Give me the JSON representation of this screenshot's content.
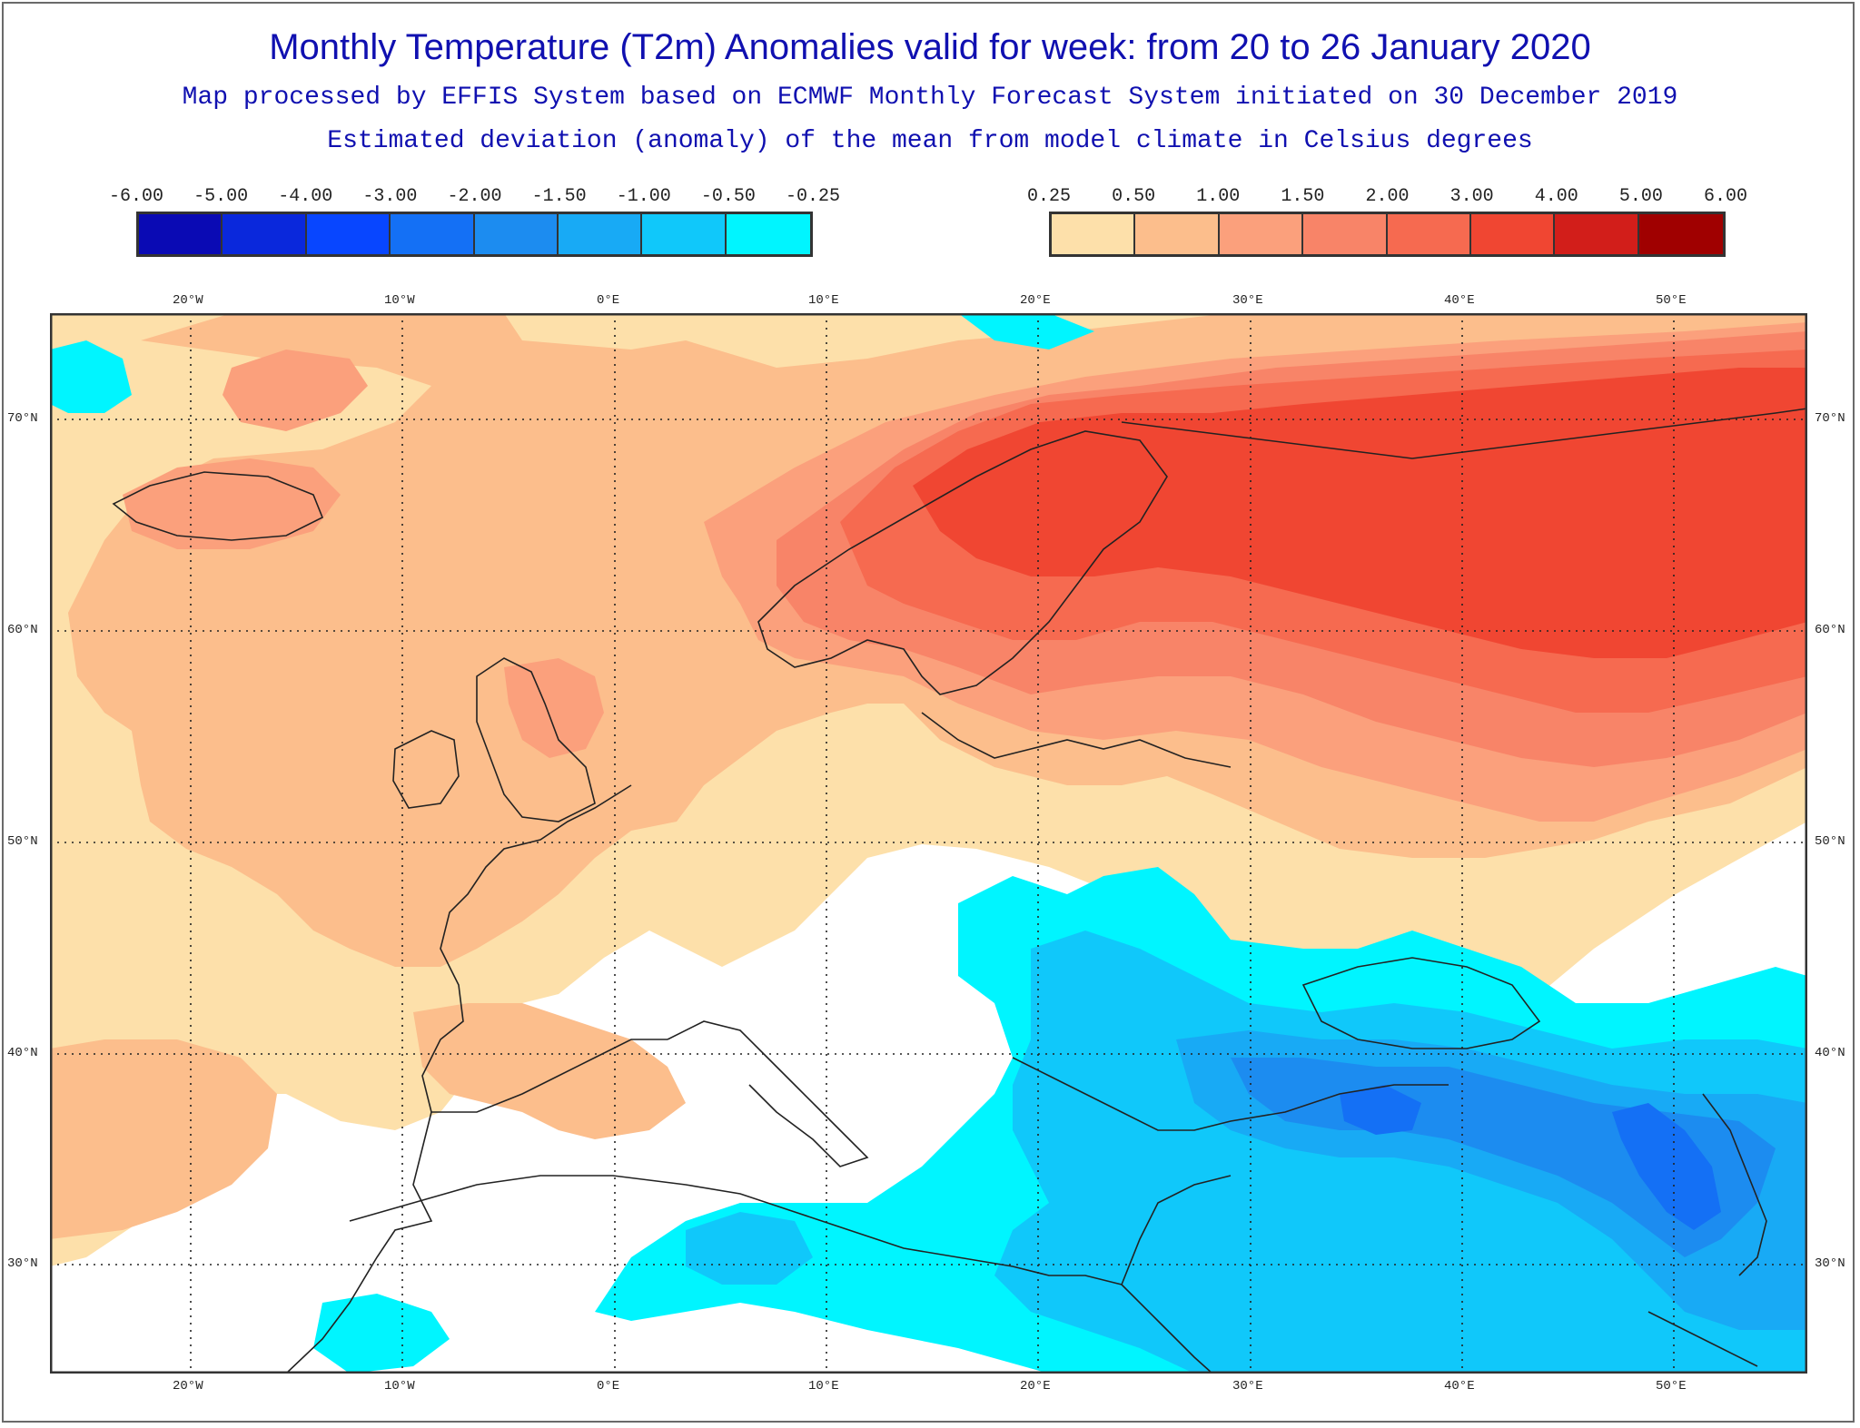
{
  "header": {
    "title": "Monthly Temperature (T2m) Anomalies valid for week: from 20 to 26 January 2020",
    "subtitle1": "Map processed by EFFIS System based on ECMWF Monthly Forecast System initiated on 30 December 2019",
    "subtitle2": "Estimated deviation (anomaly) of the mean from model climate in Celsius degrees"
  },
  "legend_negative": {
    "ticks": [
      "-6.00",
      "-5.00",
      "-4.00",
      "-3.00",
      "-2.00",
      "-1.50",
      "-1.00",
      "-0.50",
      "-0.25"
    ],
    "colors": [
      "#0a0ab4",
      "#0a28dc",
      "#0846ff",
      "#1470f5",
      "#1c8cf0",
      "#18aaf5",
      "#10c8fa",
      "#00f5ff"
    ]
  },
  "legend_positive": {
    "ticks": [
      "0.25",
      "0.50",
      "1.00",
      "1.50",
      "2.00",
      "3.00",
      "4.00",
      "5.00",
      "6.00"
    ],
    "colors": [
      "#fde0aa",
      "#fcbe8c",
      "#fba07c",
      "#f88468",
      "#f66a50",
      "#f04632",
      "#d21e1a",
      "#a00000"
    ]
  },
  "map": {
    "lon_labels": [
      "20°W",
      "10°W",
      "0°E",
      "10°E",
      "20°E",
      "30°E",
      "40°E",
      "50°E"
    ],
    "lat_labels": [
      "70°N",
      "60°N",
      "50°N",
      "40°N",
      "30°N"
    ],
    "anomaly_colors": {
      "background": "#ffffff",
      "pos_025": "#fde0aa",
      "pos_050": "#fcbe8c",
      "pos_100": "#fba07c",
      "pos_150": "#f88468",
      "pos_200": "#f66a50",
      "pos_300": "#f04632",
      "neg_025": "#00f5ff",
      "neg_050": "#10c8fa",
      "neg_100": "#18aaf5",
      "neg_150": "#1c8cf0",
      "neg_200": "#1470f5"
    }
  }
}
